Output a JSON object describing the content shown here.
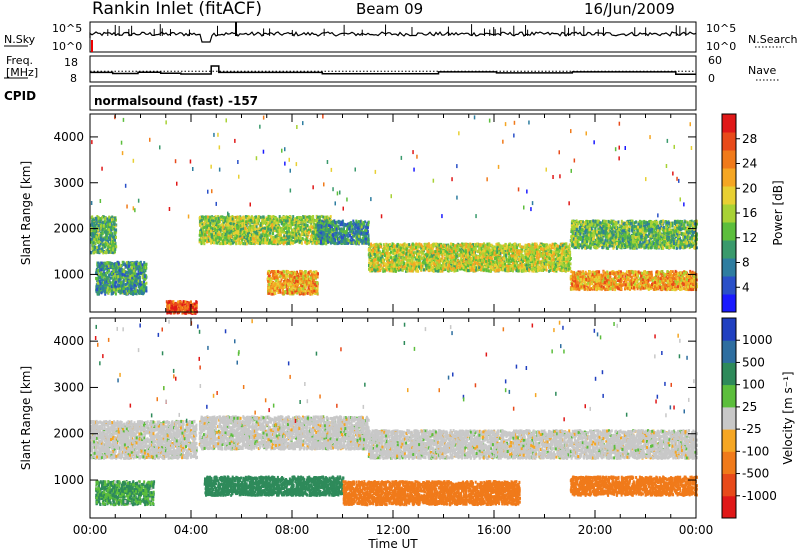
{
  "header": {
    "station": "Rankin Inlet (fitACF)",
    "beam": "Beam 09",
    "date": "16/Jun/2009"
  },
  "noise_panel": {
    "left_label": "N.Sky",
    "left_ticks": [
      "10^5",
      "10^0"
    ],
    "right_label": "N.Search",
    "right_ticks": [
      "10^5",
      "10^0"
    ]
  },
  "freq_panel": {
    "left_label_1": "Freq.",
    "left_label_2": "[MHz]",
    "left_ticks": [
      "18",
      "8"
    ],
    "right_label": "Nave",
    "right_ticks": [
      "60",
      "0"
    ],
    "freq_steps": [
      [
        0,
        11.5
      ],
      [
        0.9,
        11.5
      ],
      [
        0.9,
        10.8
      ],
      [
        1.9,
        10.8
      ],
      [
        1.9,
        11.6
      ],
      [
        2.8,
        11.6
      ],
      [
        2.8,
        11.0
      ],
      [
        3.6,
        11.0
      ],
      [
        3.6,
        10.5
      ],
      [
        4.8,
        10.5
      ],
      [
        4.8,
        15.5
      ],
      [
        5.1,
        15.5
      ],
      [
        5.1,
        11.5
      ],
      [
        9.2,
        11.5
      ],
      [
        9.2,
        10.6
      ],
      [
        13.8,
        10.6
      ],
      [
        13.8,
        11.8
      ],
      [
        16.1,
        11.8
      ],
      [
        16.1,
        11.2
      ],
      [
        19.1,
        11.2
      ],
      [
        19.1,
        11.8
      ],
      [
        23.2,
        11.8
      ],
      [
        23.2,
        10.4
      ],
      [
        24,
        10.4
      ]
    ],
    "nave_dotted_level": 12.2
  },
  "cpid": {
    "label": "CPID",
    "mode": "normalsound (fast) -157"
  },
  "chart_data": [
    {
      "type": "heatmap",
      "title": "",
      "parameter": "Power",
      "xlabel": "Time UT",
      "ylabel": "Slant Range [km]",
      "xlim": [
        0,
        24
      ],
      "ylim": [
        180,
        4500
      ],
      "x_tick_labels": [
        "00:00",
        "04:00",
        "08:00",
        "12:00",
        "16:00",
        "20:00",
        "00:00"
      ],
      "y_tick_labels": [
        "1000",
        "2000",
        "3000",
        "4000"
      ],
      "colorbar": {
        "label": "Power [dB]",
        "ticks": [
          "4",
          "8",
          "12",
          "16",
          "20",
          "24",
          "28"
        ],
        "colors": [
          "#1a1aff",
          "#2a50c8",
          "#2e7da0",
          "#3a9a6c",
          "#5cbe3c",
          "#a8d235",
          "#e8d033",
          "#f5a623",
          "#f07a1a",
          "#e84a1a",
          "#e01818"
        ]
      },
      "echo_bands": [
        {
          "t0": 0.0,
          "t1": 1.0,
          "r0": 1500,
          "r1": 2300,
          "db": 12
        },
        {
          "t0": 0.2,
          "t1": 2.2,
          "r0": 600,
          "r1": 1300,
          "db": 10
        },
        {
          "t0": 3.0,
          "t1": 4.2,
          "r0": 180,
          "r1": 450,
          "db": 27
        },
        {
          "t0": 4.3,
          "t1": 9.5,
          "r0": 1700,
          "r1": 2300,
          "db": 15
        },
        {
          "t0": 7.0,
          "t1": 9.0,
          "r0": 600,
          "r1": 1100,
          "db": 22
        },
        {
          "t0": 9.0,
          "t1": 11.0,
          "r0": 1700,
          "r1": 2200,
          "db": 9
        },
        {
          "t0": 11.0,
          "t1": 19.0,
          "r0": 1100,
          "r1": 1700,
          "db": 17
        },
        {
          "t0": 19.0,
          "t1": 24.0,
          "r0": 1600,
          "r1": 2200,
          "db": 13
        },
        {
          "t0": 19.0,
          "t1": 24.0,
          "r0": 700,
          "r1": 1100,
          "db": 22
        }
      ]
    },
    {
      "type": "heatmap",
      "title": "",
      "parameter": "Velocity",
      "xlabel": "Time UT",
      "ylabel": "Slant Range [km]",
      "xlim": [
        0,
        24
      ],
      "ylim": [
        180,
        4500
      ],
      "x_tick_labels": [
        "00:00",
        "04:00",
        "08:00",
        "12:00",
        "16:00",
        "20:00",
        "00:00"
      ],
      "y_tick_labels": [
        "1000",
        "2000",
        "3000",
        "4000"
      ],
      "colorbar": {
        "label": "Velocity [m s⁻¹]",
        "ticks": [
          "1000",
          "500",
          "100",
          "25",
          "-25",
          "-100",
          "-500",
          "-1000"
        ],
        "colors": [
          "#2040c0",
          "#2e6ea0",
          "#2e8a5a",
          "#5cbe3c",
          "#c8c8c8",
          "#f5a623",
          "#f07a1a",
          "#e84a1a",
          "#e01818"
        ]
      },
      "echo_bands": [
        {
          "t0": 0.0,
          "t1": 4.2,
          "r0": 1500,
          "r1": 2300,
          "v": 0
        },
        {
          "t0": 4.3,
          "t1": 11.0,
          "r0": 1700,
          "r1": 2400,
          "v": 0
        },
        {
          "t0": 11.0,
          "t1": 24.0,
          "r0": 1500,
          "r1": 2100,
          "v": 0
        },
        {
          "t0": 0.2,
          "t1": 2.5,
          "r0": 500,
          "r1": 1000,
          "v": 120
        },
        {
          "t0": 4.5,
          "t1": 10.0,
          "r0": 700,
          "r1": 1100,
          "v": 300
        },
        {
          "t0": 10.0,
          "t1": 17.0,
          "r0": 500,
          "r1": 1000,
          "v": -200
        },
        {
          "t0": 19.0,
          "t1": 24.0,
          "r0": 700,
          "r1": 1100,
          "v": -250
        }
      ]
    }
  ]
}
